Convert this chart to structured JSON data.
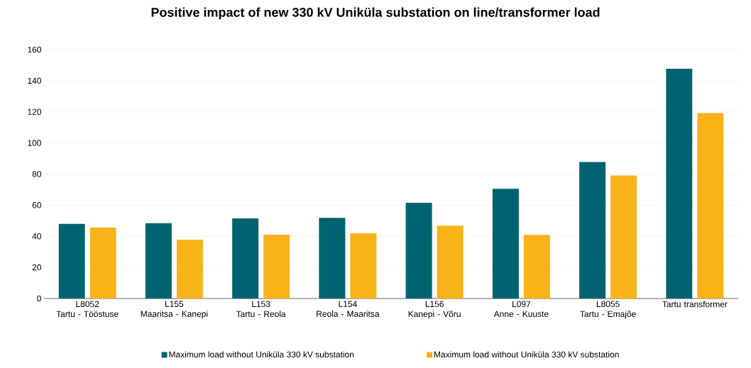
{
  "chart_data": {
    "type": "bar",
    "title": "Positive impact of new 330 kV Uniküla substation on line/transformer load",
    "categories": [
      "L8052\nTartu - Tööstuse",
      "L155\nMaaritsa - Kanepi",
      "L153\nTartu - Reola",
      "L154\nReola - Maaritsa",
      "L156\nKanepi - Võru",
      "L097\nAnne - Kuuste",
      "L8055\nTartu - Emajõe",
      "Tartu transformer"
    ],
    "series": [
      {
        "name": "Maximum load without Uniküla 330 kV substation",
        "color": "#00636f",
        "values": [
          48,
          48.4,
          51.5,
          51.9,
          61.5,
          70.5,
          87.8,
          147.7
        ]
      },
      {
        "name": "Maximum load without Uniküla 330 kV substation",
        "color": "#f8b319",
        "values": [
          45.6,
          37.8,
          41,
          41.9,
          46.8,
          40.9,
          79.1,
          119.2
        ]
      }
    ],
    "ylim": [
      0,
      160
    ],
    "yticks": [
      0,
      20,
      40,
      60,
      80,
      100,
      120,
      140,
      160
    ],
    "grid": "y",
    "legend": "bottom"
  }
}
